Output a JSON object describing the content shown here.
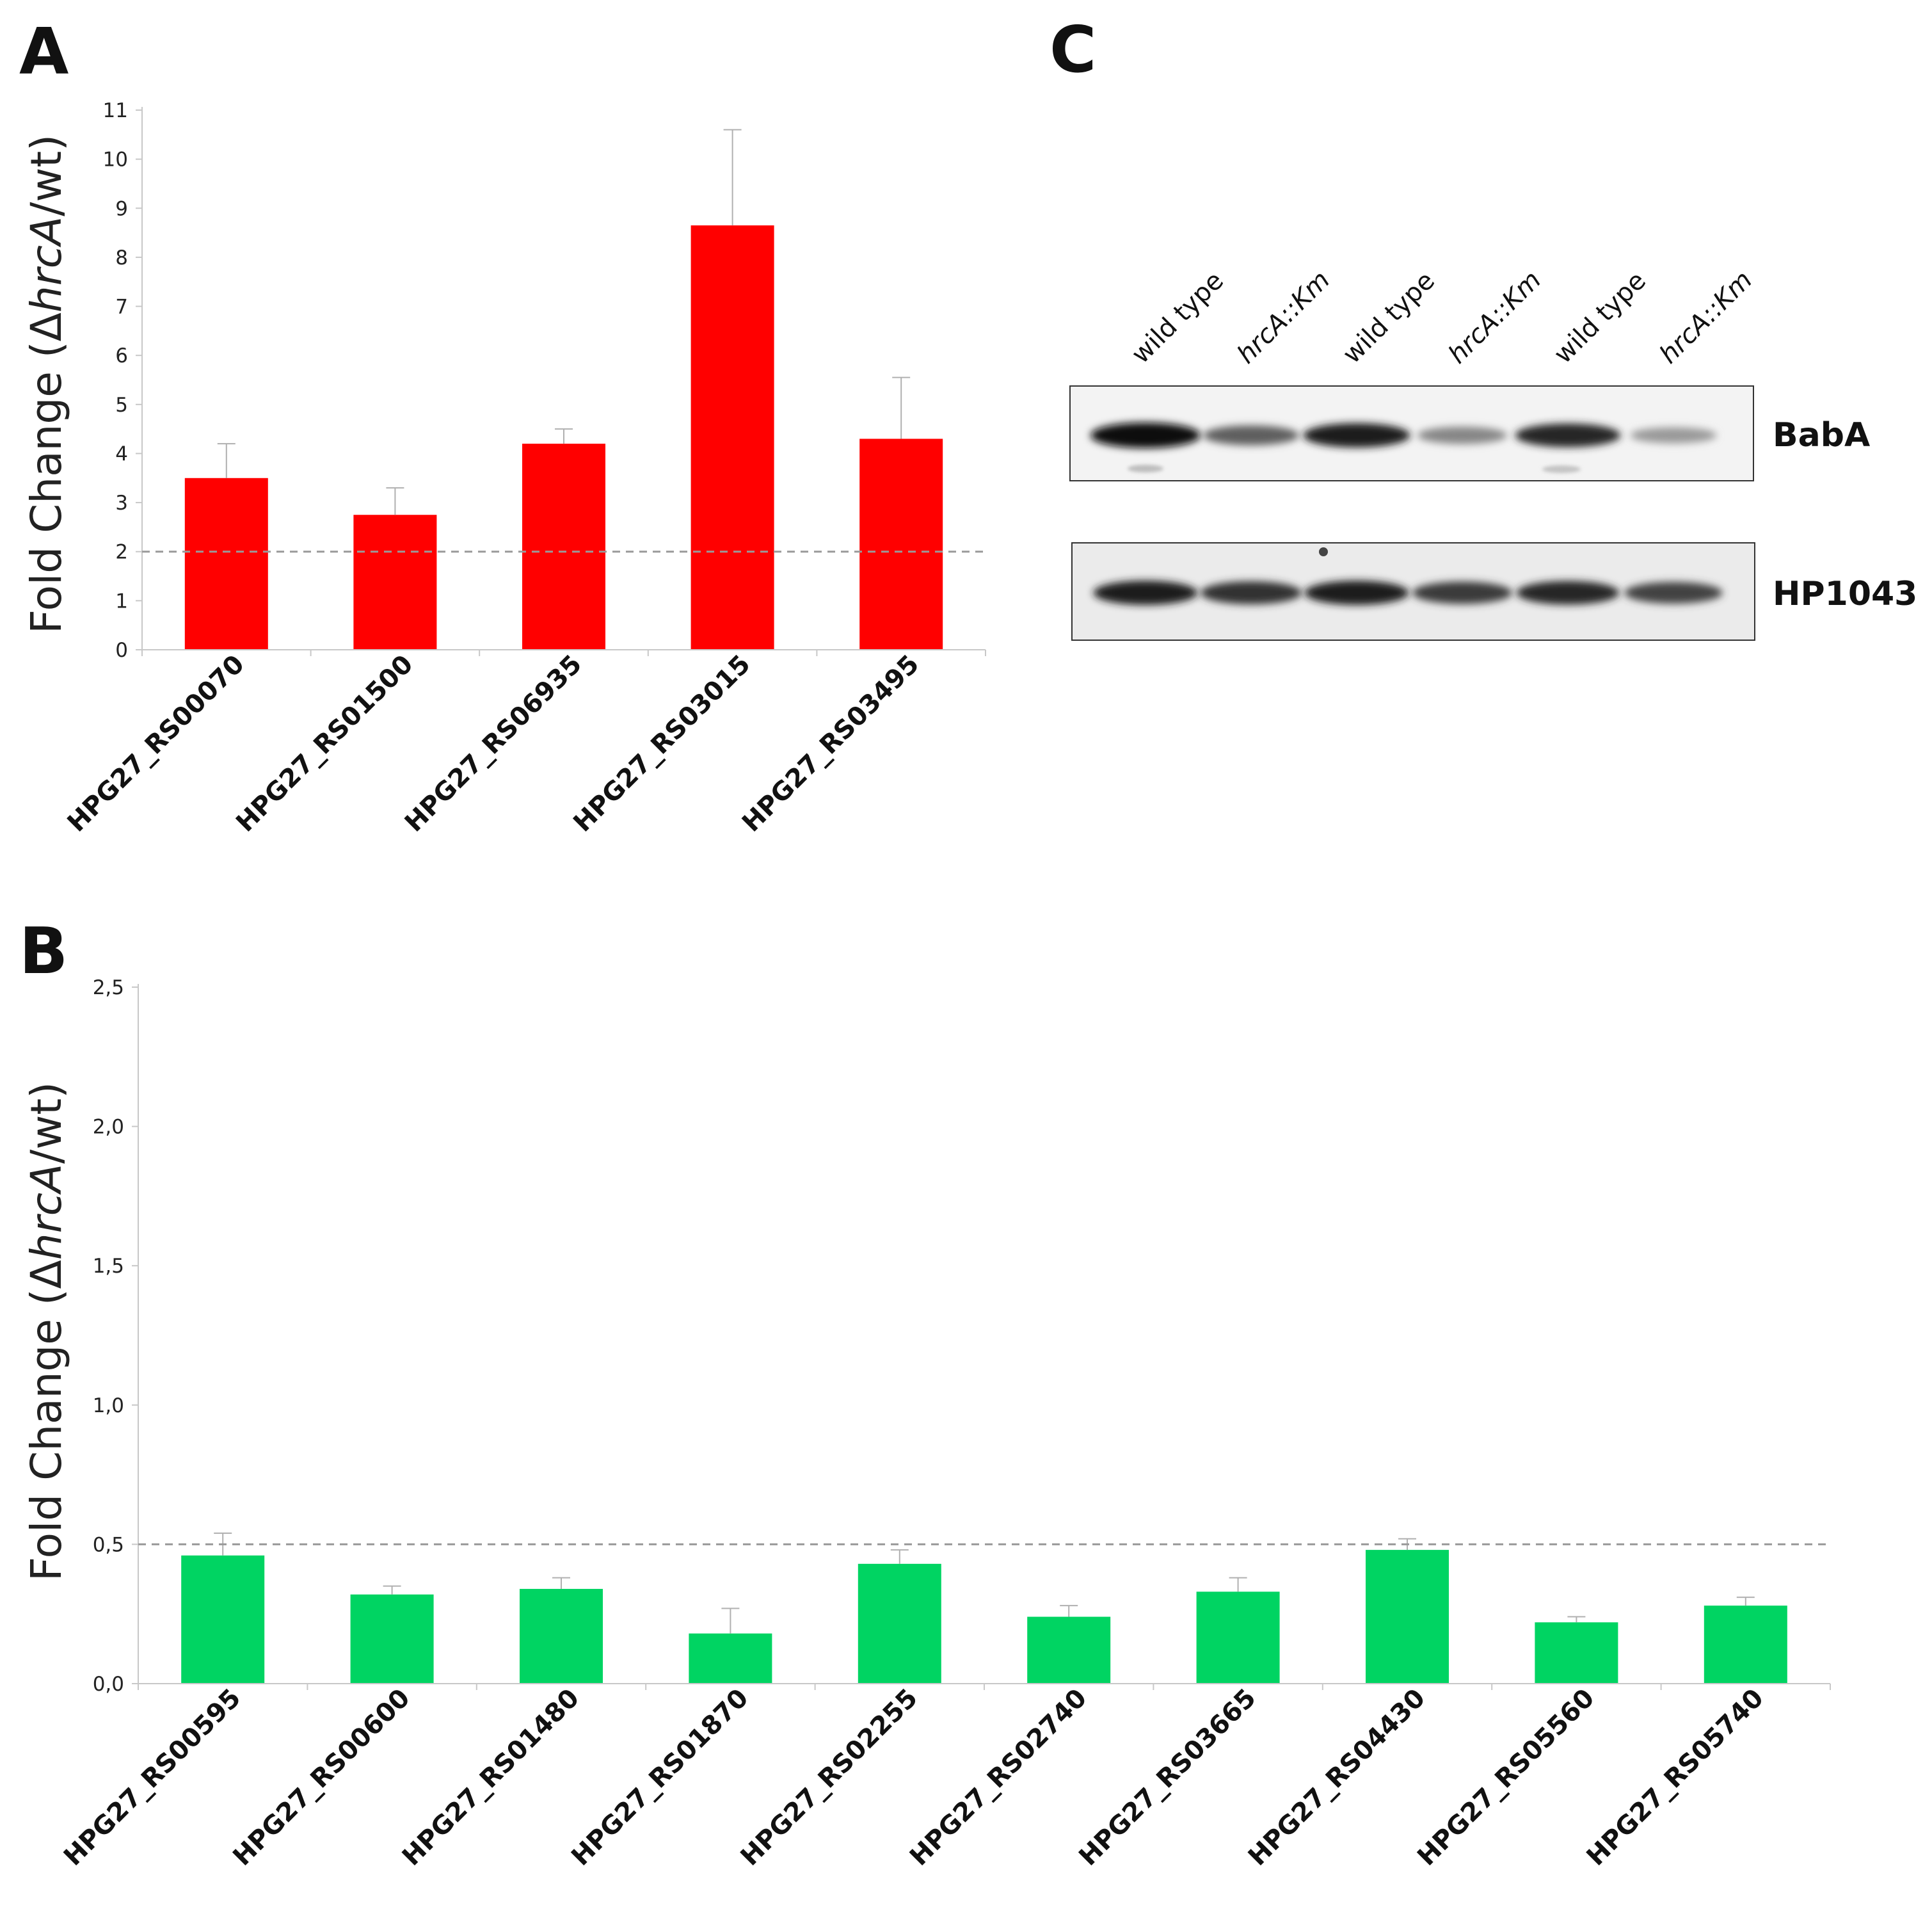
{
  "panels": {
    "a": "A",
    "b": "B",
    "c": "C"
  },
  "chart_data": [
    {
      "type": "bar",
      "panel": "A",
      "ylabel_prefix": "Fold Change (Δ",
      "ylabel_italic": "hrcA",
      "ylabel_suffix": "/wt)",
      "color": "#ff0000",
      "ylim": [
        0,
        11
      ],
      "yticks": [
        "0",
        "1",
        "2",
        "3",
        "4",
        "5",
        "6",
        "7",
        "8",
        "9",
        "10",
        "11"
      ],
      "ytick_values": [
        0,
        1,
        2,
        3,
        4,
        5,
        6,
        7,
        8,
        9,
        10,
        11
      ],
      "threshold": 2,
      "categories": [
        "HPG27_RS00070",
        "HPG27_RS01500",
        "HPG27_RS06935",
        "HPG27_RS03015",
        "HPG27_RS03495"
      ],
      "values": [
        3.5,
        2.75,
        4.2,
        8.65,
        4.3
      ],
      "errors": [
        0.7,
        0.55,
        0.3,
        1.95,
        1.25
      ]
    },
    {
      "type": "bar",
      "panel": "B",
      "ylabel_prefix": "Fold Change (Δ",
      "ylabel_italic": "hrcA",
      "ylabel_suffix": "/wt)",
      "color": "#00d462",
      "ylim": [
        0,
        2.5
      ],
      "yticks": [
        "0,0",
        "0,5",
        "1,0",
        "1,5",
        "2,0",
        "2,5"
      ],
      "ytick_values": [
        0,
        0.5,
        1.0,
        1.5,
        2.0,
        2.5
      ],
      "threshold": 0.5,
      "categories": [
        "HPG27_RS00595",
        "HPG27_RS00600",
        "HPG27_RS01480",
        "HPG27_RS01870",
        "HPG27_RS02255",
        "HPG27_RS02740",
        "HPG27_RS03665",
        "HPG27_RS04430",
        "HPG27_RS05560",
        "HPG27_RS05740"
      ],
      "values": [
        0.46,
        0.32,
        0.34,
        0.18,
        0.43,
        0.24,
        0.33,
        0.48,
        0.22,
        0.28
      ],
      "errors": [
        0.08,
        0.03,
        0.04,
        0.09,
        0.05,
        0.04,
        0.05,
        0.04,
        0.02,
        0.03
      ]
    }
  ],
  "blot": {
    "lanes": [
      "wild type",
      "hrcA::Km",
      "wild type",
      "hrcA::Km",
      "wild type",
      "hrcA::Km"
    ],
    "lane_italic": [
      false,
      true,
      false,
      true,
      false,
      true
    ],
    "bands": [
      "BabA",
      "HP1043"
    ],
    "baba_intensity": [
      1.0,
      0.55,
      0.9,
      0.35,
      0.85,
      0.25
    ],
    "hp1043_intensity": [
      0.9,
      0.8,
      0.9,
      0.75,
      0.85,
      0.7
    ]
  }
}
